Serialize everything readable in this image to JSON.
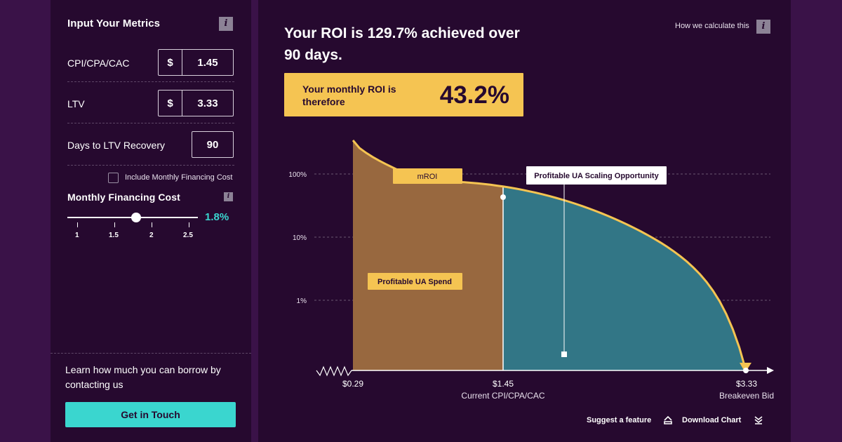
{
  "sidebar": {
    "title": "Input Your Metrics",
    "cpi_label": "CPI/CPA/CAC",
    "cpi_currency": "$",
    "cpi_value": "1.45",
    "ltv_label": "LTV",
    "ltv_currency": "$",
    "ltv_value": "3.33",
    "days_label": "Days to LTV Recovery",
    "days_value": "90",
    "financing_checkbox_label": "Include Monthly Financing Cost",
    "financing_checked": false,
    "financing_title": "Monthly Financing Cost",
    "slider_ticks": [
      "1",
      "1.5",
      "2",
      "2.5"
    ],
    "slider_value": "1.8%",
    "slider_level": 1.8,
    "borrow_text": "Learn how much you can borrow by contacting us",
    "cta_label": "Get in Touch"
  },
  "main": {
    "roi_headline": "Your ROI is 129.7% achieved over 90 days.",
    "monthly_label": "Your monthly ROI is therefore",
    "monthly_value": "43.2%",
    "how_calc_label": "How we calculate this",
    "suggest_label": "Suggest a feature",
    "download_label": "Download Chart"
  },
  "chart_data": {
    "type": "area",
    "y_scale": "log",
    "y_ticks": [
      "100%",
      "10%",
      "1%"
    ],
    "x_labels": [
      {
        "value": "$0.29",
        "sub": ""
      },
      {
        "value": "$1.45",
        "sub": "Current CPI/CPA/CAC"
      },
      {
        "value": "$3.33",
        "sub": "Breakeven Bid"
      }
    ],
    "curve_label": "mROI",
    "regions": [
      {
        "label": "Profitable UA Spend",
        "from": 0.29,
        "to": 1.45,
        "color": "#98683f"
      },
      {
        "label": "Profitable UA Scaling Opportunity",
        "from": 1.45,
        "to": 3.33,
        "color": "#327686"
      }
    ],
    "line_color": "#f5c452",
    "grid": true
  },
  "icons": {
    "info": "i"
  }
}
